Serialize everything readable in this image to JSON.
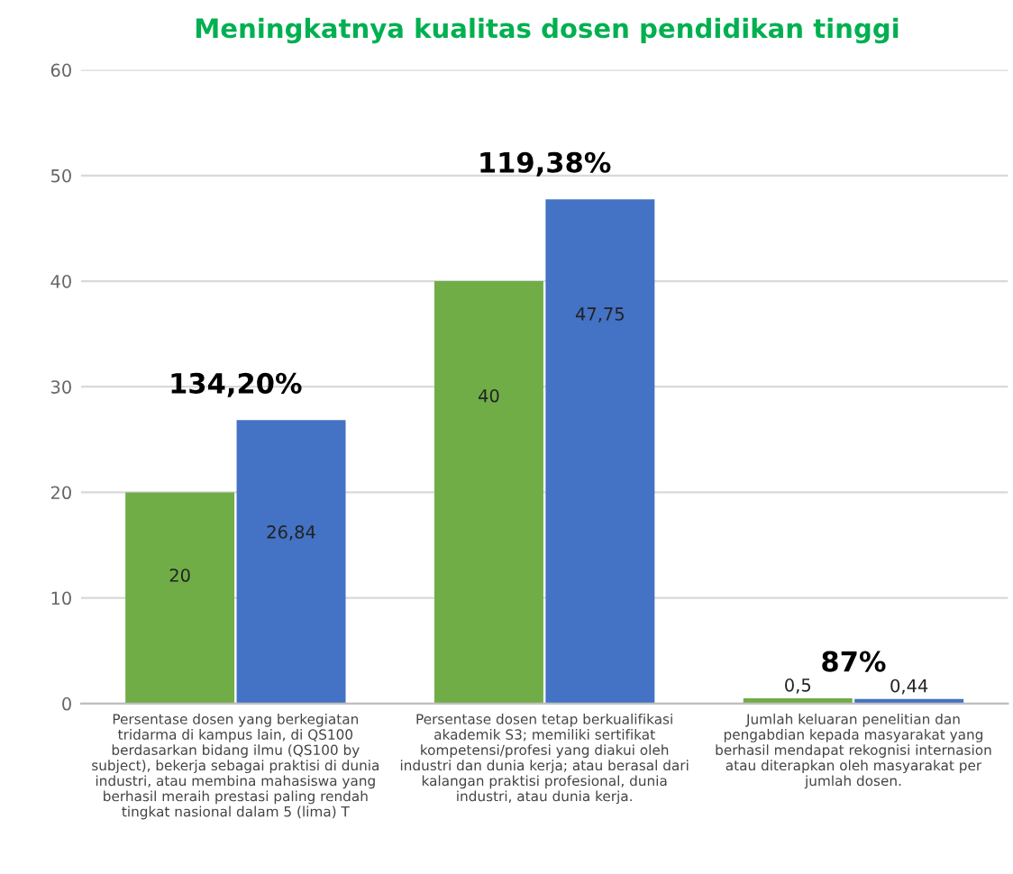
{
  "chart_data": {
    "type": "bar",
    "title": "Meningkatnya kualitas dosen pendidikan tinggi",
    "categories": [
      "Persentase dosen yang berkegiatan\ntridarma di kampus lain, di QS100\nberdasarkan bidang ilmu (QS100 by\nsubject), bekerja sebagai praktisi di dunia\nindustri, atau membina mahasiswa yang\nberhasil meraih prestasi paling rendah\ntingkat nasional dalam 5 (lima) T",
      "Persentase dosen tetap berkualifikasi\nakademik S3; memiliki sertifikat\nkompetensi/profesi yang diakui oleh\nindustri dan dunia kerja; atau berasal dari\nkalangan praktisi profesional, dunia\nindustri, atau dunia kerja.",
      "Jumlah keluaran penelitian dan\npengabdian kepada masyarakat yang\nberhasil mendapat rekognisi internasion\natau diterapkan oleh masyarakat per\njumlah dosen."
    ],
    "series": [
      {
        "color": "#70ad47",
        "values": [
          20,
          40,
          0.5
        ],
        "value_labels": [
          "20",
          "40",
          "0,5"
        ]
      },
      {
        "color": "#4472c4",
        "values": [
          26.84,
          47.75,
          0.44
        ],
        "value_labels": [
          "26,84",
          "47,75",
          "0,44"
        ]
      }
    ],
    "ylim": [
      0,
      60
    ],
    "yticks": [
      0,
      10,
      20,
      30,
      40,
      50,
      60
    ],
    "grid": "y",
    "legend": false,
    "annotations": [
      "134,20%",
      "119,38%",
      "87%"
    ]
  }
}
